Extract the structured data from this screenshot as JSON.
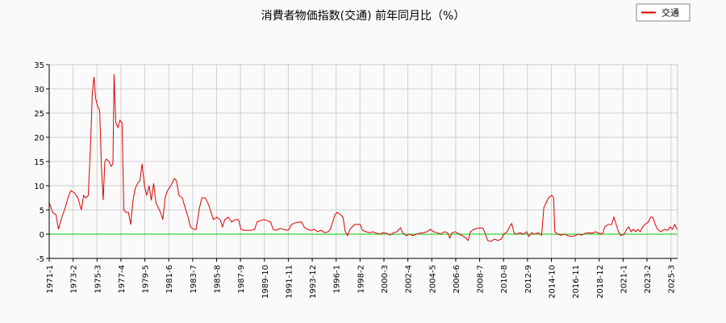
{
  "chart_data": {
    "type": "line",
    "title": "消費者物価指数(交通) 前年同月比（%）",
    "ylim": [
      -5,
      35
    ],
    "yticks": [
      -5,
      0,
      5,
      10,
      15,
      20,
      25,
      30,
      35
    ],
    "xlim": [
      1971.0,
      2025.75
    ],
    "xtick_labels": [
      "1971-1",
      "1973-2",
      "1975-3",
      "1977-4",
      "1979-5",
      "1981-6",
      "1983-7",
      "1985-8",
      "1987-9",
      "1989-10",
      "1991-11",
      "1993-12",
      "1996-1",
      "1998-2",
      "2000-3",
      "2002-4",
      "2004-5",
      "2006-6",
      "2008-7",
      "2010-8",
      "2012-9",
      "2014-10",
      "2016-11",
      "2018-12",
      "2021-1",
      "2023-2",
      "2025-3"
    ],
    "xtick_positions": [
      1971.0,
      1973.083,
      1975.167,
      1977.25,
      1979.333,
      1981.417,
      1983.5,
      1985.583,
      1987.667,
      1989.75,
      1991.833,
      1993.917,
      1996.0,
      1998.083,
      2000.167,
      2002.25,
      2004.333,
      2006.417,
      2008.5,
      2010.583,
      2012.667,
      2014.75,
      2016.833,
      2018.917,
      2021.0,
      2023.083,
      2025.167
    ],
    "grid": true,
    "legend": {
      "position": "top-right",
      "entries": [
        "交通"
      ]
    },
    "zero_line": {
      "y": 0,
      "color": "#00cc00"
    },
    "series": [
      {
        "name": "交通",
        "color": "#dd0000",
        "points": [
          [
            1971.0,
            6.5
          ],
          [
            1971.3,
            4.5
          ],
          [
            1971.6,
            4.0
          ],
          [
            1971.8,
            1.0
          ],
          [
            1972.1,
            3.5
          ],
          [
            1972.4,
            5.5
          ],
          [
            1972.7,
            8.0
          ],
          [
            1972.9,
            9.0
          ],
          [
            1973.2,
            8.5
          ],
          [
            1973.5,
            7.5
          ],
          [
            1973.8,
            5.0
          ],
          [
            1974.0,
            8.0
          ],
          [
            1974.2,
            7.5
          ],
          [
            1974.4,
            8.0
          ],
          [
            1974.6,
            18.0
          ],
          [
            1974.75,
            29.0
          ],
          [
            1974.9,
            32.5
          ],
          [
            1975.05,
            28.0
          ],
          [
            1975.2,
            26.5
          ],
          [
            1975.4,
            25.5
          ],
          [
            1975.55,
            14.0
          ],
          [
            1975.7,
            7.0
          ],
          [
            1975.85,
            15.0
          ],
          [
            1976.0,
            15.5
          ],
          [
            1976.2,
            15.0
          ],
          [
            1976.4,
            14.0
          ],
          [
            1976.55,
            14.5
          ],
          [
            1976.65,
            33.0
          ],
          [
            1976.8,
            23.0
          ],
          [
            1977.0,
            22.0
          ],
          [
            1977.15,
            23.5
          ],
          [
            1977.35,
            23.0
          ],
          [
            1977.5,
            5.0
          ],
          [
            1977.7,
            4.5
          ],
          [
            1977.9,
            4.5
          ],
          [
            1978.1,
            2.0
          ],
          [
            1978.3,
            7.0
          ],
          [
            1978.5,
            9.5
          ],
          [
            1978.7,
            10.5
          ],
          [
            1978.9,
            11.0
          ],
          [
            1979.1,
            14.5
          ],
          [
            1979.3,
            10.0
          ],
          [
            1979.5,
            8.0
          ],
          [
            1979.7,
            10.0
          ],
          [
            1979.9,
            7.0
          ],
          [
            1980.1,
            10.5
          ],
          [
            1980.3,
            6.5
          ],
          [
            1980.5,
            5.5
          ],
          [
            1980.7,
            4.5
          ],
          [
            1980.9,
            3.0
          ],
          [
            1981.1,
            7.5
          ],
          [
            1981.3,
            9.0
          ],
          [
            1981.6,
            10.0
          ],
          [
            1981.9,
            11.5
          ],
          [
            1982.1,
            11.0
          ],
          [
            1982.3,
            8.0
          ],
          [
            1982.6,
            7.5
          ],
          [
            1982.9,
            5.0
          ],
          [
            1983.1,
            3.5
          ],
          [
            1983.3,
            1.5
          ],
          [
            1983.6,
            1.0
          ],
          [
            1983.8,
            1.0
          ],
          [
            1984.1,
            5.5
          ],
          [
            1984.3,
            7.5
          ],
          [
            1984.6,
            7.5
          ],
          [
            1984.9,
            6.0
          ],
          [
            1985.1,
            4.5
          ],
          [
            1985.3,
            3.0
          ],
          [
            1985.6,
            3.5
          ],
          [
            1985.9,
            3.0
          ],
          [
            1986.1,
            1.5
          ],
          [
            1986.3,
            3.0
          ],
          [
            1986.6,
            3.5
          ],
          [
            1986.9,
            2.5
          ],
          [
            1987.2,
            3.0
          ],
          [
            1987.5,
            3.0
          ],
          [
            1987.7,
            1.0
          ],
          [
            1988.0,
            0.8
          ],
          [
            1988.3,
            0.8
          ],
          [
            1988.6,
            0.8
          ],
          [
            1988.9,
            1.0
          ],
          [
            1989.1,
            2.5
          ],
          [
            1989.4,
            2.8
          ],
          [
            1989.7,
            3.0
          ],
          [
            1990.0,
            2.8
          ],
          [
            1990.3,
            2.5
          ],
          [
            1990.5,
            1.0
          ],
          [
            1990.8,
            0.8
          ],
          [
            1991.1,
            1.2
          ],
          [
            1991.4,
            1.0
          ],
          [
            1991.7,
            0.8
          ],
          [
            1991.9,
            1.0
          ],
          [
            1992.1,
            2.0
          ],
          [
            1992.4,
            2.3
          ],
          [
            1992.7,
            2.5
          ],
          [
            1993.0,
            2.5
          ],
          [
            1993.2,
            1.5
          ],
          [
            1993.5,
            1.0
          ],
          [
            1993.8,
            0.8
          ],
          [
            1994.1,
            1.0
          ],
          [
            1994.4,
            0.5
          ],
          [
            1994.7,
            0.8
          ],
          [
            1995.0,
            0.3
          ],
          [
            1995.3,
            0.5
          ],
          [
            1995.5,
            1.0
          ],
          [
            1995.7,
            2.5
          ],
          [
            1995.9,
            4.0
          ],
          [
            1996.1,
            4.5
          ],
          [
            1996.4,
            4.0
          ],
          [
            1996.6,
            3.5
          ],
          [
            1996.8,
            0.5
          ],
          [
            1997.0,
            -0.3
          ],
          [
            1997.2,
            1.0
          ],
          [
            1997.4,
            1.5
          ],
          [
            1997.6,
            2.0
          ],
          [
            1997.9,
            2.0
          ],
          [
            1998.1,
            2.0
          ],
          [
            1998.3,
            0.8
          ],
          [
            1998.6,
            0.5
          ],
          [
            1998.9,
            0.3
          ],
          [
            1999.2,
            0.5
          ],
          [
            1999.5,
            0.2
          ],
          [
            1999.8,
            0.0
          ],
          [
            2000.1,
            0.3
          ],
          [
            2000.4,
            0.2
          ],
          [
            2000.7,
            -0.2
          ],
          [
            2001.0,
            0.3
          ],
          [
            2001.3,
            0.5
          ],
          [
            2001.6,
            1.3
          ],
          [
            2001.8,
            0.3
          ],
          [
            2002.1,
            -0.3
          ],
          [
            2002.4,
            0.0
          ],
          [
            2002.7,
            -0.3
          ],
          [
            2003.0,
            0.0
          ],
          [
            2003.3,
            0.2
          ],
          [
            2003.6,
            0.3
          ],
          [
            2003.9,
            0.5
          ],
          [
            2004.2,
            1.0
          ],
          [
            2004.5,
            0.5
          ],
          [
            2004.8,
            0.3
          ],
          [
            2005.1,
            0.0
          ],
          [
            2005.4,
            0.5
          ],
          [
            2005.7,
            0.3
          ],
          [
            2005.9,
            -0.8
          ],
          [
            2006.1,
            0.3
          ],
          [
            2006.4,
            0.5
          ],
          [
            2006.7,
            0.0
          ],
          [
            2007.0,
            -0.3
          ],
          [
            2007.3,
            -0.8
          ],
          [
            2007.5,
            -1.3
          ],
          [
            2007.7,
            0.5
          ],
          [
            2008.0,
            1.0
          ],
          [
            2008.3,
            1.2
          ],
          [
            2008.6,
            1.3
          ],
          [
            2008.8,
            1.2
          ],
          [
            2009.0,
            0.0
          ],
          [
            2009.2,
            -1.3
          ],
          [
            2009.5,
            -1.5
          ],
          [
            2009.8,
            -1.0
          ],
          [
            2010.1,
            -1.3
          ],
          [
            2010.4,
            -1.0
          ],
          [
            2010.6,
            0.0
          ],
          [
            2010.9,
            0.5
          ],
          [
            2011.1,
            1.5
          ],
          [
            2011.3,
            2.2
          ],
          [
            2011.5,
            0.3
          ],
          [
            2011.7,
            0.0
          ],
          [
            2012.0,
            0.3
          ],
          [
            2012.3,
            0.0
          ],
          [
            2012.6,
            0.5
          ],
          [
            2012.8,
            -0.5
          ],
          [
            2013.0,
            0.3
          ],
          [
            2013.3,
            0.0
          ],
          [
            2013.6,
            0.3
          ],
          [
            2013.9,
            -0.2
          ],
          [
            2014.1,
            5.5
          ],
          [
            2014.3,
            6.5
          ],
          [
            2014.5,
            7.5
          ],
          [
            2014.8,
            8.0
          ],
          [
            2014.95,
            7.5
          ],
          [
            2015.05,
            0.5
          ],
          [
            2015.3,
            0.0
          ],
          [
            2015.6,
            -0.2
          ],
          [
            2015.9,
            0.0
          ],
          [
            2016.2,
            -0.3
          ],
          [
            2016.5,
            -0.5
          ],
          [
            2016.8,
            -0.3
          ],
          [
            2017.1,
            0.0
          ],
          [
            2017.4,
            -0.2
          ],
          [
            2017.7,
            0.2
          ],
          [
            2018.0,
            0.3
          ],
          [
            2018.3,
            0.2
          ],
          [
            2018.6,
            0.5
          ],
          [
            2018.9,
            0.2
          ],
          [
            2019.2,
            0.0
          ],
          [
            2019.4,
            1.5
          ],
          [
            2019.7,
            2.0
          ],
          [
            2020.0,
            2.0
          ],
          [
            2020.2,
            3.5
          ],
          [
            2020.4,
            2.0
          ],
          [
            2020.6,
            0.5
          ],
          [
            2020.8,
            -0.3
          ],
          [
            2021.1,
            0.0
          ],
          [
            2021.3,
            1.0
          ],
          [
            2021.5,
            1.5
          ],
          [
            2021.7,
            0.5
          ],
          [
            2021.9,
            1.0
          ],
          [
            2022.1,
            0.5
          ],
          [
            2022.3,
            1.0
          ],
          [
            2022.5,
            0.5
          ],
          [
            2022.7,
            1.5
          ],
          [
            2022.9,
            2.0
          ],
          [
            2023.2,
            2.5
          ],
          [
            2023.4,
            3.5
          ],
          [
            2023.6,
            3.5
          ],
          [
            2023.8,
            2.0
          ],
          [
            2024.0,
            1.0
          ],
          [
            2024.3,
            0.5
          ],
          [
            2024.6,
            1.0
          ],
          [
            2024.9,
            0.8
          ],
          [
            2025.1,
            1.5
          ],
          [
            2025.3,
            1.0
          ],
          [
            2025.5,
            2.0
          ],
          [
            2025.7,
            1.0
          ]
        ]
      }
    ]
  }
}
